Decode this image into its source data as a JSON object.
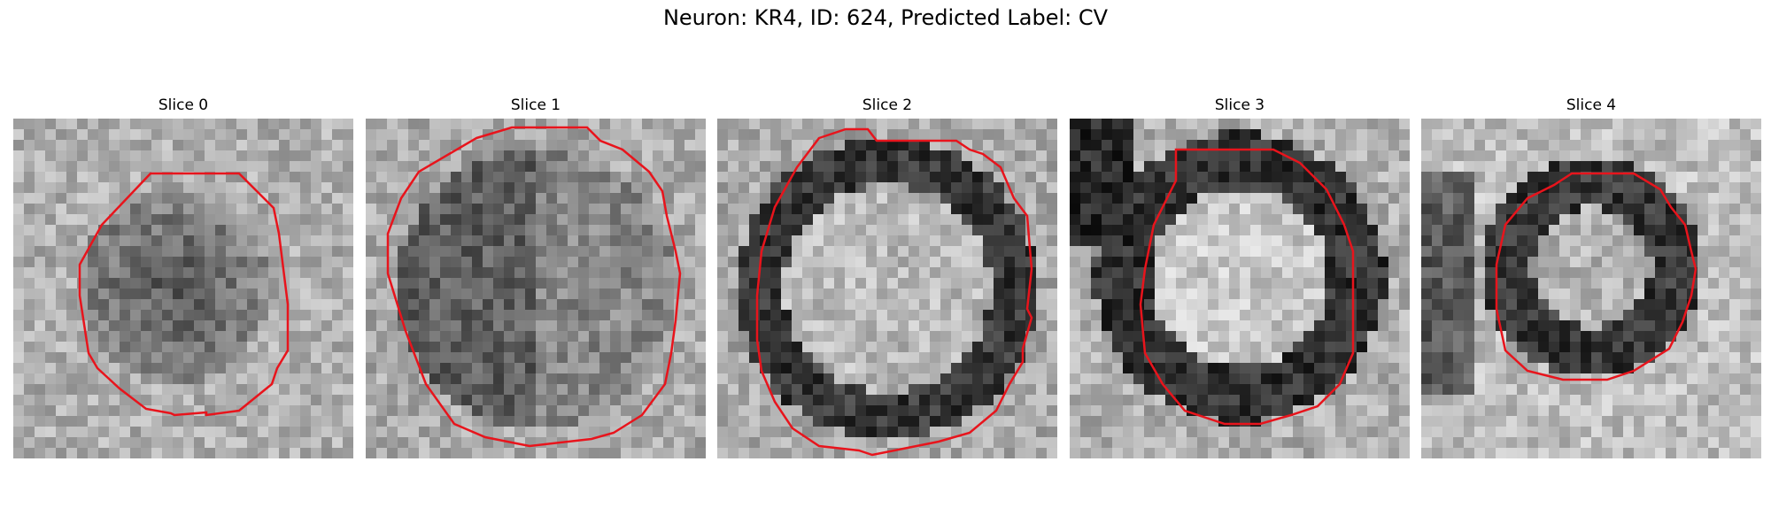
{
  "figure": {
    "title": "Neuron: KR4, ID: 624, Predicted Label: CV"
  },
  "panels": [
    {
      "title": "Slice 0",
      "pattern": "dark-blob"
    },
    {
      "title": "Slice 1",
      "pattern": "dark-mottled"
    },
    {
      "title": "Slice 2",
      "pattern": "ring-light-center"
    },
    {
      "title": "Slice 3",
      "pattern": "ring-thick"
    },
    {
      "title": "Slice 4",
      "pattern": "ring-small"
    }
  ],
  "colors": {
    "contour": "#e8141c"
  }
}
